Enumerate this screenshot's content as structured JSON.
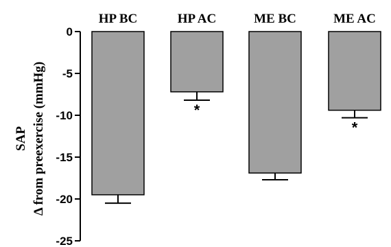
{
  "chart_data": {
    "type": "bar",
    "categories": [
      "HP BC",
      "HP AC",
      "ME BC",
      "ME AC"
    ],
    "values": [
      -19.5,
      -7.2,
      -16.9,
      -9.4
    ],
    "errors": [
      1.0,
      1.0,
      0.8,
      0.9
    ],
    "significance": [
      "",
      "*",
      "",
      "*"
    ],
    "ylabel_line1": "SAP",
    "ylabel_line2": "Δ from preexercise (mmHg)",
    "ylim": [
      -25,
      0
    ],
    "yticks": [
      0,
      -5,
      -10,
      -15,
      -20,
      -25
    ],
    "category_labels_position": "top",
    "bar_color": "#a0a0a0"
  }
}
